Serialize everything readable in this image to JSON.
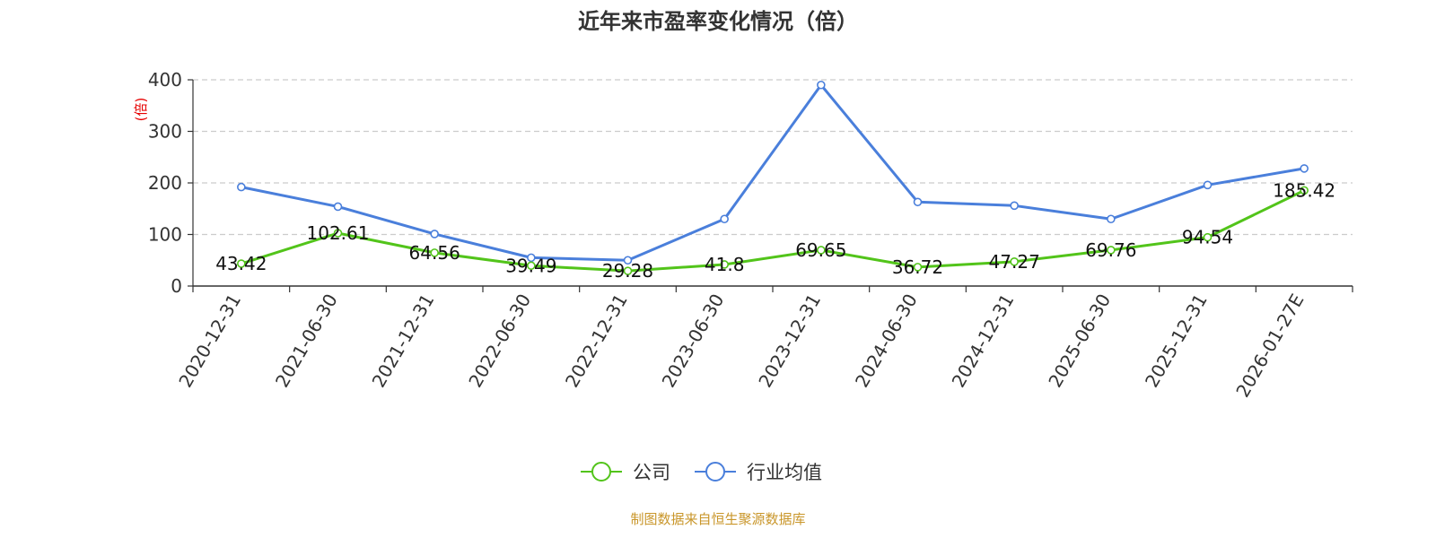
{
  "chart_data": {
    "type": "line",
    "title": "近年来市盈率变化情况（倍）",
    "ylabel": "(倍)",
    "xlabel": "",
    "ylim": [
      0,
      400
    ],
    "yticks": [
      0,
      100,
      200,
      300,
      400
    ],
    "grid": true,
    "grid_style": "dashed",
    "legend_position": "bottom-center",
    "categories": [
      "2020-12-31",
      "2021-06-30",
      "2021-12-31",
      "2022-06-30",
      "2022-12-31",
      "2023-06-30",
      "2023-12-31",
      "2024-06-30",
      "2024-12-31",
      "2025-06-30",
      "2025-12-31",
      "2026-01-27E"
    ],
    "series": [
      {
        "name": "公司",
        "color": "#52c41a",
        "values": [
          43.42,
          102.61,
          64.56,
          39.49,
          29.28,
          41.8,
          69.65,
          36.72,
          47.27,
          69.76,
          94.54,
          185.42
        ],
        "labels": [
          "43.42",
          "102.61",
          "64.56",
          "39.49",
          "29.28",
          "41.8",
          "69.65",
          "36.72",
          "47.27",
          "69.76",
          "94.54",
          "185.42"
        ]
      },
      {
        "name": "行业均值",
        "color": "#4a7fdb",
        "values": [
          192,
          154,
          101,
          55,
          50,
          130,
          390,
          163,
          156,
          130,
          196,
          228
        ]
      }
    ]
  },
  "footer": {
    "source": "制图数据来自恒生聚源数据库"
  }
}
